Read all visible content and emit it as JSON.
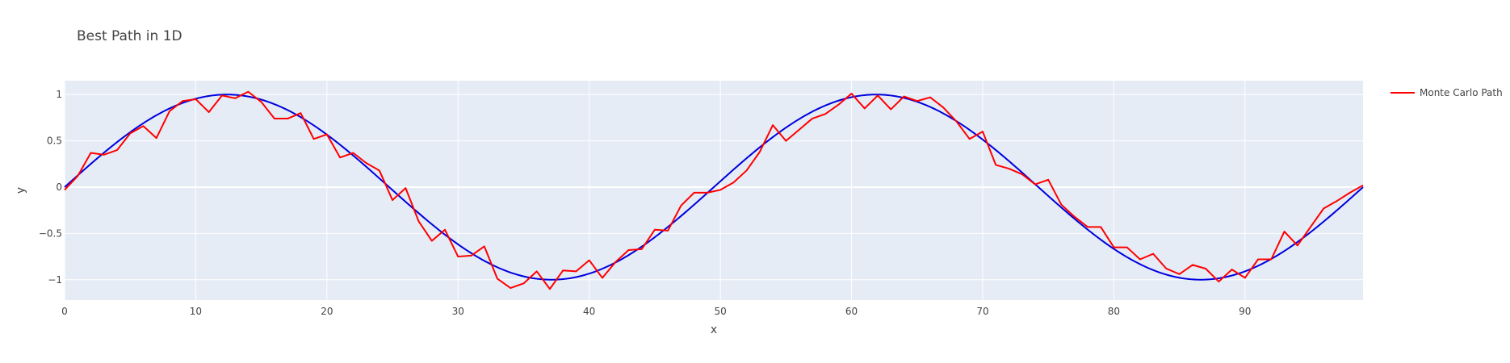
{
  "chart_data": {
    "type": "line",
    "title": "Best Path in 1D",
    "xlabel": "x",
    "ylabel": "y",
    "xlim": [
      0,
      99
    ],
    "ylim": [
      -1.22,
      1.15
    ],
    "x_ticks": [
      0,
      10,
      20,
      30,
      40,
      50,
      60,
      70,
      80,
      90
    ],
    "x_tick_labels": [
      "0",
      "10",
      "20",
      "30",
      "40",
      "50",
      "60",
      "70",
      "80",
      "90"
    ],
    "y_ticks": [
      1,
      0.5,
      0,
      -0.5,
      -1
    ],
    "y_tick_labels": [
      "1",
      "0.5",
      "0",
      "−0.5",
      "−1"
    ],
    "grid": true,
    "legend_position": "top-right outside",
    "colors": {
      "plot_background": "#e5ecf6",
      "grid": "#ffffff",
      "reference_line": "#0000dd",
      "monte_carlo": "#ff0000"
    },
    "series": [
      {
        "name": "",
        "color": "#0000dd",
        "function": "sin",
        "x_start": 0,
        "x_end": 99,
        "period": 49.5
      },
      {
        "name": "Monte Carlo Path",
        "color": "#ff0000",
        "x_start": 0,
        "x_step": 1,
        "values": [
          -0.03,
          0.12,
          0.37,
          0.35,
          0.4,
          0.58,
          0.66,
          0.53,
          0.82,
          0.93,
          0.95,
          0.81,
          0.99,
          0.96,
          1.03,
          0.92,
          0.74,
          0.74,
          0.8,
          0.52,
          0.57,
          0.32,
          0.37,
          0.26,
          0.18,
          -0.14,
          -0.01,
          -0.37,
          -0.58,
          -0.46,
          -0.75,
          -0.74,
          -0.64,
          -0.99,
          -1.09,
          -1.04,
          -0.91,
          -1.1,
          -0.9,
          -0.91,
          -0.79,
          -0.98,
          -0.81,
          -0.68,
          -0.67,
          -0.46,
          -0.47,
          -0.2,
          -0.06,
          -0.06,
          -0.03,
          0.05,
          0.18,
          0.38,
          0.67,
          0.5,
          0.62,
          0.74,
          0.79,
          0.89,
          1.01,
          0.85,
          0.99,
          0.84,
          0.98,
          0.93,
          0.97,
          0.86,
          0.71,
          0.52,
          0.6,
          0.24,
          0.2,
          0.14,
          0.03,
          0.08,
          -0.19,
          -0.32,
          -0.43,
          -0.43,
          -0.65,
          -0.65,
          -0.78,
          -0.72,
          -0.88,
          -0.94,
          -0.84,
          -0.88,
          -1.02,
          -0.89,
          -0.98,
          -0.78,
          -0.78,
          -0.48,
          -0.63,
          -0.43,
          -0.23,
          -0.15,
          -0.06,
          0.02
        ]
      }
    ]
  }
}
